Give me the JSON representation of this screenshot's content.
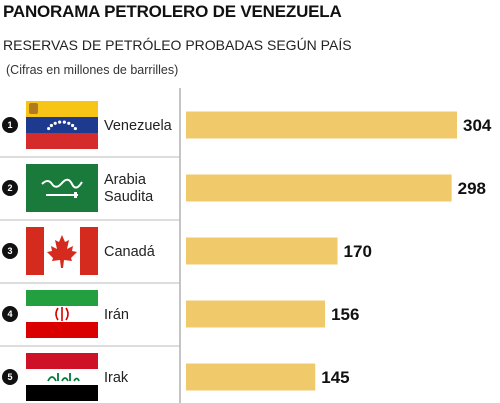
{
  "title": "PANORAMA PETROLERO DE VENEZUELA",
  "subtitle": "RESERVAS DE PETRÓLEO PROBADAS SEGÚN PAÍS",
  "note": "(Cifras en millones de barrilles)",
  "colors": {
    "bar": "#f0c96a",
    "separator": "#8a8a8a",
    "rank": "#111111"
  },
  "chart_data": {
    "type": "bar",
    "orientation": "horizontal",
    "categories": [
      {
        "rank": "1",
        "lines": [
          "Venezuela"
        ],
        "flag": "venezuela-flag"
      },
      {
        "rank": "2",
        "lines": [
          "Arabia",
          "Saudita"
        ],
        "flag": "saudi-arabia-flag"
      },
      {
        "rank": "3",
        "lines": [
          "Canadá"
        ],
        "flag": "canada-flag"
      },
      {
        "rank": "4",
        "lines": [
          "Irán"
        ],
        "flag": "iran-flag"
      },
      {
        "rank": "5",
        "lines": [
          "Irak"
        ],
        "flag": "iraq-flag"
      }
    ],
    "values": [
      304,
      298,
      170,
      156,
      145
    ],
    "value_labels": [
      "304",
      "298",
      "170",
      "156",
      "145"
    ],
    "xlim": [
      0,
      304
    ],
    "grid": false,
    "legend": "none"
  }
}
